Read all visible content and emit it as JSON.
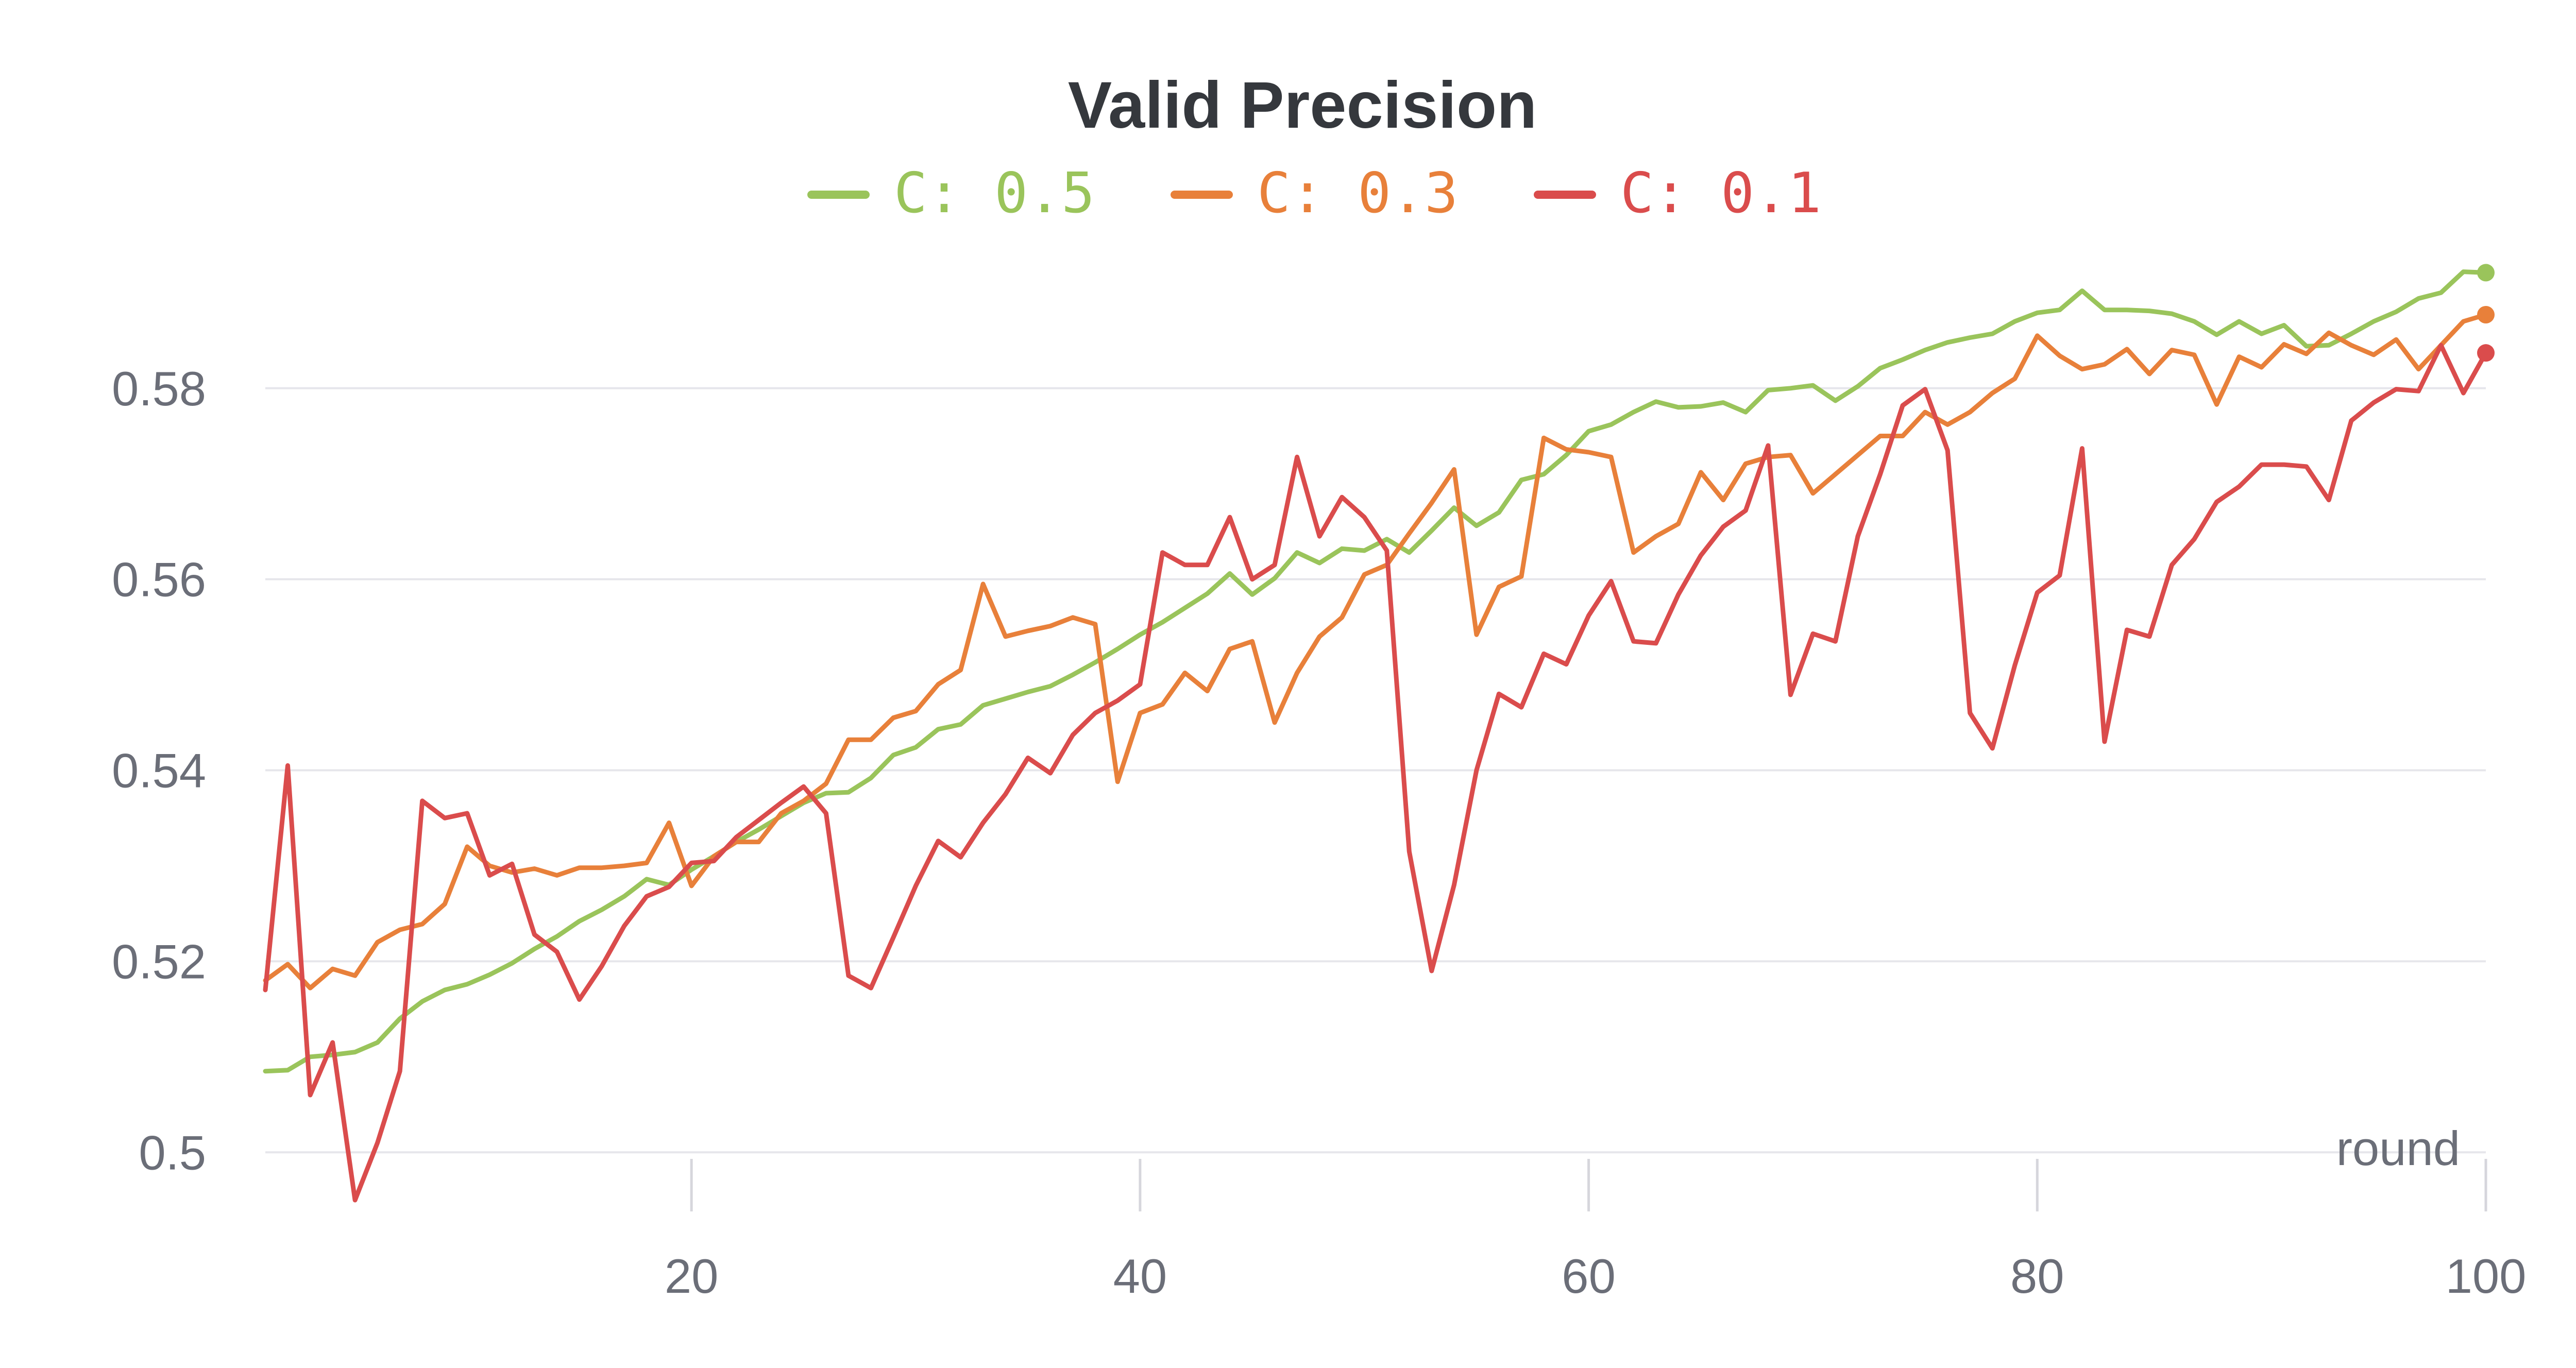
{
  "chart_data": {
    "type": "line",
    "title": "Valid Precision",
    "xlabel": "round",
    "ylabel": "",
    "xlim": [
      1,
      100
    ],
    "ylim": [
      0.495,
      0.598
    ],
    "x_ticks": [
      20,
      40,
      60,
      80,
      100
    ],
    "y_ticks": [
      0.5,
      0.52,
      0.54,
      0.56,
      0.58
    ],
    "y_tick_labels": [
      "0.5",
      "0.52",
      "0.54",
      "0.56",
      "0.58"
    ],
    "legend_position": "top-center",
    "series": [
      {
        "name": "C: 0.5",
        "color": "#9ac45b",
        "x_start": 1,
        "values": [
          0.5085,
          0.5086,
          0.51,
          0.5102,
          0.5105,
          0.5115,
          0.514,
          0.5158,
          0.517,
          0.5176,
          0.5186,
          0.5198,
          0.5213,
          0.5226,
          0.5242,
          0.5254,
          0.5268,
          0.5286,
          0.528,
          0.5296,
          0.531,
          0.5325,
          0.5338,
          0.5352,
          0.5366,
          0.5376,
          0.5377,
          0.5392,
          0.5416,
          0.5424,
          0.5443,
          0.5448,
          0.5468,
          0.5475,
          0.5482,
          0.5488,
          0.55,
          0.5513,
          0.5527,
          0.5542,
          0.5555,
          0.557,
          0.5585,
          0.5606,
          0.5584,
          0.5601,
          0.5628,
          0.5617,
          0.5632,
          0.563,
          0.5642,
          0.5628,
          0.5651,
          0.5675,
          0.5656,
          0.567,
          0.5704,
          0.571,
          0.573,
          0.5755,
          0.5762,
          0.5775,
          0.5786,
          0.578,
          0.5781,
          0.5785,
          0.5775,
          0.5798,
          0.58,
          0.5803,
          0.5787,
          0.5802,
          0.5821,
          0.583,
          0.584,
          0.5848,
          0.5853,
          0.5857,
          0.587,
          0.5879,
          0.5882,
          0.5902,
          0.5882,
          0.5882,
          0.5881,
          0.5878,
          0.587,
          0.5856,
          0.587,
          0.5857,
          0.5866,
          0.5844,
          0.5845,
          0.5857,
          0.587,
          0.588,
          0.5894,
          0.59,
          0.5922,
          0.5921
        ]
      },
      {
        "name": "C: 0.3",
        "color": "#e8803a",
        "x_start": 1,
        "values": [
          0.518,
          0.5197,
          0.5172,
          0.5192,
          0.5185,
          0.522,
          0.5233,
          0.5239,
          0.526,
          0.532,
          0.53,
          0.5293,
          0.5297,
          0.529,
          0.5298,
          0.5298,
          0.53,
          0.5303,
          0.5345,
          0.5279,
          0.531,
          0.5325,
          0.5325,
          0.5355,
          0.5368,
          0.5386,
          0.5432,
          0.5432,
          0.5455,
          0.5462,
          0.549,
          0.5505,
          0.5595,
          0.554,
          0.5546,
          0.5551,
          0.556,
          0.5553,
          0.5388,
          0.546,
          0.5469,
          0.5502,
          0.5483,
          0.5527,
          0.5535,
          0.545,
          0.5502,
          0.554,
          0.556,
          0.5605,
          0.5615,
          0.5648,
          0.568,
          0.5715,
          0.5542,
          0.5592,
          0.5603,
          0.5748,
          0.5736,
          0.5733,
          0.5728,
          0.5628,
          0.5645,
          0.5658,
          0.5712,
          0.5683,
          0.5721,
          0.5728,
          0.573,
          0.569,
          0.571,
          0.573,
          0.575,
          0.575,
          0.5775,
          0.5762,
          0.5775,
          0.5795,
          0.581,
          0.5855,
          0.5834,
          0.582,
          0.5825,
          0.5841,
          0.5815,
          0.584,
          0.5835,
          0.5783,
          0.5833,
          0.5822,
          0.5846,
          0.5836,
          0.5858,
          0.5845,
          0.5835,
          0.5851,
          0.582,
          0.5845,
          0.587,
          0.5877
        ]
      },
      {
        "name": "C: 0.1",
        "color": "#da4c4c",
        "x_start": 1,
        "values": [
          0.517,
          0.5405,
          0.506,
          0.5115,
          0.495,
          0.501,
          0.5085,
          0.5368,
          0.535,
          0.5355,
          0.529,
          0.5302,
          0.5228,
          0.521,
          0.516,
          0.5195,
          0.5237,
          0.5268,
          0.5278,
          0.5303,
          0.5305,
          0.533,
          0.5348,
          0.5366,
          0.5383,
          0.5355,
          0.5185,
          0.5172,
          0.5225,
          0.5279,
          0.5326,
          0.5309,
          0.5345,
          0.5375,
          0.5413,
          0.5397,
          0.5437,
          0.546,
          0.5473,
          0.549,
          0.5628,
          0.5615,
          0.5615,
          0.5665,
          0.56,
          0.5615,
          0.5728,
          0.5645,
          0.5686,
          0.5665,
          0.563,
          0.5315,
          0.519,
          0.528,
          0.54,
          0.548,
          0.5466,
          0.5522,
          0.5511,
          0.5562,
          0.5598,
          0.5535,
          0.5533,
          0.5584,
          0.5625,
          0.5655,
          0.5672,
          0.574,
          0.5479,
          0.5543,
          0.5535,
          0.5645,
          0.571,
          0.5782,
          0.5799,
          0.5735,
          0.546,
          0.5423,
          0.551,
          0.5586,
          0.5604,
          0.5737,
          0.543,
          0.5547,
          0.554,
          0.5615,
          0.5642,
          0.5681,
          0.5697,
          0.572,
          0.572,
          0.5718,
          0.5683,
          0.5766,
          0.5785,
          0.5799,
          0.5797,
          0.5845,
          0.5795,
          0.5837
        ]
      }
    ]
  }
}
